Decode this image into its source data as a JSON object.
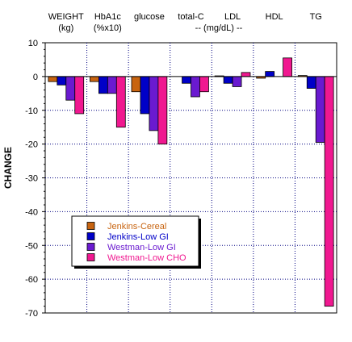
{
  "chart_data": {
    "type": "bar",
    "title": "",
    "xlabel": "",
    "ylabel": "CHANGE",
    "ylim": [
      -70,
      10
    ],
    "yticks": [
      10,
      0,
      -10,
      -20,
      -30,
      -40,
      -50,
      -60,
      -70
    ],
    "grid": true,
    "legend_position": "lower-left inset",
    "categories": [
      "WEIGHT",
      "HbA1c",
      "glucose",
      "total-C",
      "LDL",
      "HDL",
      "TG"
    ],
    "category_units": [
      "(kg)",
      "(%x10)",
      "",
      "",
      "",
      "",
      ""
    ],
    "shared_unit_label": "-- (mg/dL) --",
    "series": [
      {
        "name": "Jenkins-Cereal",
        "color": "#c86410",
        "values": [
          -1.5,
          -1.5,
          -4.5,
          0,
          0.2,
          -0.5,
          0.3
        ]
      },
      {
        "name": "Jenkins-Low GI",
        "color": "#0000c8",
        "values": [
          -2.5,
          -5,
          -11,
          -2,
          -2,
          1.5,
          -3.5
        ]
      },
      {
        "name": "Westman-Low GI",
        "color": "#6a1ad0",
        "values": [
          -7,
          -5,
          -16,
          -6,
          -3,
          0,
          -19.5
        ]
      },
      {
        "name": "Westman-Low CHO",
        "color": "#f01890",
        "values": [
          -11,
          -15,
          -20,
          -4.5,
          1.2,
          5.5,
          -68
        ]
      }
    ]
  }
}
